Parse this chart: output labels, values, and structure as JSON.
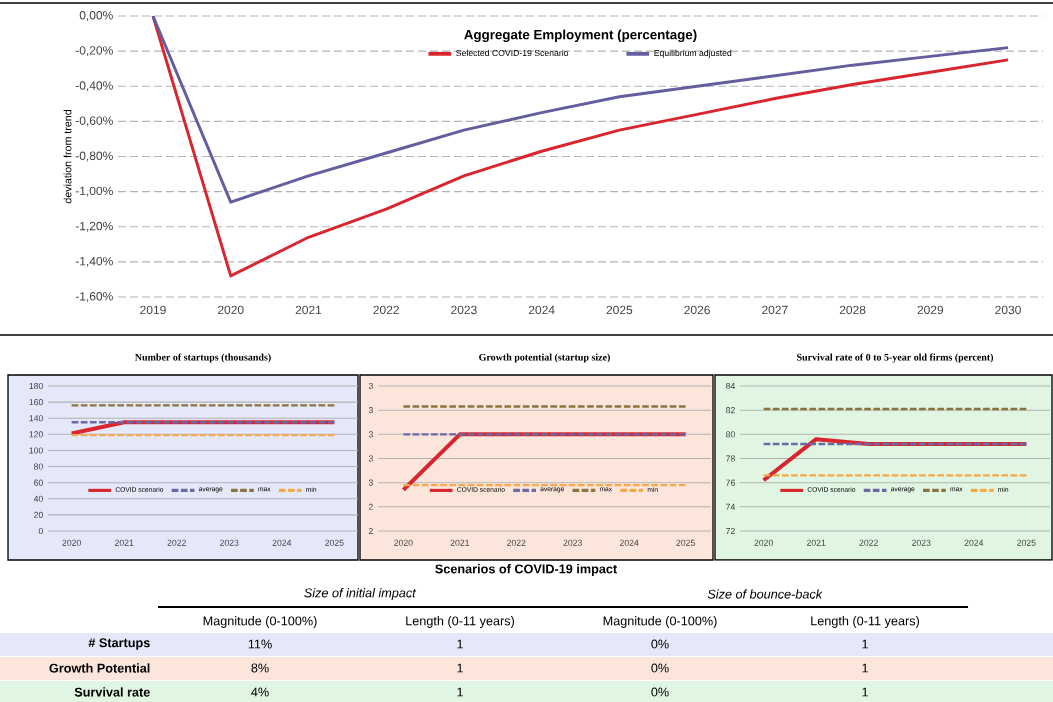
{
  "chart_data": [
    {
      "type": "line",
      "title": "Aggregate Employment (percentage)",
      "ylabel": "deviation from trend",
      "categories": [
        "2019",
        "2020",
        "2021",
        "2022",
        "2023",
        "2024",
        "2025",
        "2026",
        "2027",
        "2028",
        "2029",
        "2030"
      ],
      "series": [
        {
          "name": "Selected COVID-19 Scenario",
          "color": "#d9262e",
          "values": [
            0,
            -1.48,
            -1.26,
            -1.1,
            -0.91,
            -0.77,
            -0.65,
            -0.56,
            -0.47,
            -0.39,
            -0.32,
            -0.25
          ]
        },
        {
          "name": "Equilibrium adjusted",
          "color": "#635f9e",
          "values": [
            0,
            -1.06,
            -0.91,
            -0.78,
            -0.65,
            -0.55,
            -0.46,
            -0.4,
            -0.34,
            -0.28,
            -0.23,
            -0.18
          ]
        }
      ],
      "ylim": [
        -1.6,
        0
      ],
      "yticks": [
        {
          "value": -1.6,
          "label": "-1,60%"
        },
        {
          "value": -1.4,
          "label": "-1,40%"
        },
        {
          "value": -1.2,
          "label": "-1,20%"
        },
        {
          "value": -1.0,
          "label": "-1,00%"
        },
        {
          "value": -0.8,
          "label": "-0,80%"
        },
        {
          "value": -0.6,
          "label": "-0,60%"
        },
        {
          "value": -0.4,
          "label": "-0,40%"
        },
        {
          "value": -0.2,
          "label": "-0,20%"
        },
        {
          "value": 0,
          "label": "0,00%"
        }
      ],
      "grid": "y",
      "legend": "top",
      "marker": "none"
    },
    {
      "type": "line",
      "title": "Number of startups (thousands)",
      "categories": [
        "2020",
        "2021",
        "2022",
        "2023",
        "2024",
        "2025"
      ],
      "series": [
        {
          "name": "COVID scenario",
          "color": "#d9262e",
          "line_style": "solid",
          "values": [
            121,
            135,
            135,
            135,
            135,
            135
          ]
        },
        {
          "name": "average",
          "color": "#6b69a8",
          "line_style": "dashed",
          "values": [
            135,
            135,
            135,
            135,
            135,
            135
          ]
        },
        {
          "name": "max",
          "color": "#8b7440",
          "line_style": "dashed",
          "values": [
            156,
            156,
            156,
            156,
            156,
            156
          ]
        },
        {
          "name": "min",
          "color": "#f7a847",
          "line_style": "dashed",
          "values": [
            119,
            119,
            119,
            119,
            119,
            119
          ]
        }
      ],
      "ylim": [
        0,
        180
      ],
      "yticks": [
        0,
        20,
        40,
        60,
        80,
        100,
        120,
        140,
        160,
        180
      ],
      "grid": "y",
      "legend": "bottom",
      "marker": "none"
    },
    {
      "type": "line",
      "title": "Growth potential (startup size)",
      "categories": [
        "2020",
        "2021",
        "2022",
        "2023",
        "2024",
        "2025"
      ],
      "series": [
        {
          "name": "COVID scenario",
          "color": "#d9262e",
          "line_style": "solid",
          "values": [
            2.54,
            3.0,
            3.0,
            3.0,
            3.0,
            3.0
          ]
        },
        {
          "name": "average",
          "color": "#6b69a8",
          "line_style": "dashed",
          "values": [
            3.0,
            3.0,
            3.0,
            3.0,
            3.0,
            3.0
          ]
        },
        {
          "name": "max",
          "color": "#8b7440",
          "line_style": "dashed",
          "values": [
            3.23,
            3.23,
            3.23,
            3.23,
            3.23,
            3.23
          ]
        },
        {
          "name": "min",
          "color": "#f7a847",
          "line_style": "dashed",
          "values": [
            2.58,
            2.58,
            2.58,
            2.58,
            2.58,
            2.58
          ]
        }
      ],
      "ylim": [
        2.2,
        3.4
      ],
      "yticks": [
        {
          "value": 2.2,
          "label": "2"
        },
        {
          "value": 2.4,
          "label": "2"
        },
        {
          "value": 2.6,
          "label": "3"
        },
        {
          "value": 2.8,
          "label": "3"
        },
        {
          "value": 3.0,
          "label": "3"
        },
        {
          "value": 3.2,
          "label": "3"
        },
        {
          "value": 3.4,
          "label": "3"
        }
      ],
      "grid": "y",
      "legend": "bottom",
      "marker": "none"
    },
    {
      "type": "line",
      "title": "Survival rate of 0 to 5-year old firms (percent)",
      "categories": [
        "2020",
        "2021",
        "2022",
        "2023",
        "2024",
        "2025"
      ],
      "series": [
        {
          "name": "COVID scenario",
          "color": "#d9262e",
          "line_style": "solid",
          "values": [
            76.2,
            79.6,
            79.2,
            79.2,
            79.2,
            79.2
          ]
        },
        {
          "name": "average",
          "color": "#6b69a8",
          "line_style": "dashed",
          "values": [
            79.2,
            79.2,
            79.2,
            79.2,
            79.2,
            79.2
          ]
        },
        {
          "name": "max",
          "color": "#8b7440",
          "line_style": "dashed",
          "values": [
            82.1,
            82.1,
            82.1,
            82.1,
            82.1,
            82.1
          ]
        },
        {
          "name": "min",
          "color": "#f7a847",
          "line_style": "dashed",
          "values": [
            76.6,
            76.6,
            76.6,
            76.6,
            76.6,
            76.6
          ]
        }
      ],
      "ylim": [
        72,
        84
      ],
      "yticks": [
        72,
        74,
        76,
        78,
        80,
        82,
        84
      ],
      "grid": "y",
      "legend": "bottom",
      "marker": "none"
    },
    {
      "type": "other",
      "title": "Scenarios of COVID-19 impact",
      "annotations": [
        "*Size of initial impact*",
        "*Size of bounce-back*",
        "Magnitude (0-100%)",
        "Length (0-11 years)",
        "Magnitude (0-100%)",
        "Length (0-11 years)",
        "**# Startups**",
        "11%",
        "1",
        "0%",
        "1",
        "**Growth Potential**",
        "8%",
        "1",
        "0%",
        "1",
        "**Survival rate**",
        "4%",
        "1",
        "0%",
        "1"
      ]
    }
  ]
}
